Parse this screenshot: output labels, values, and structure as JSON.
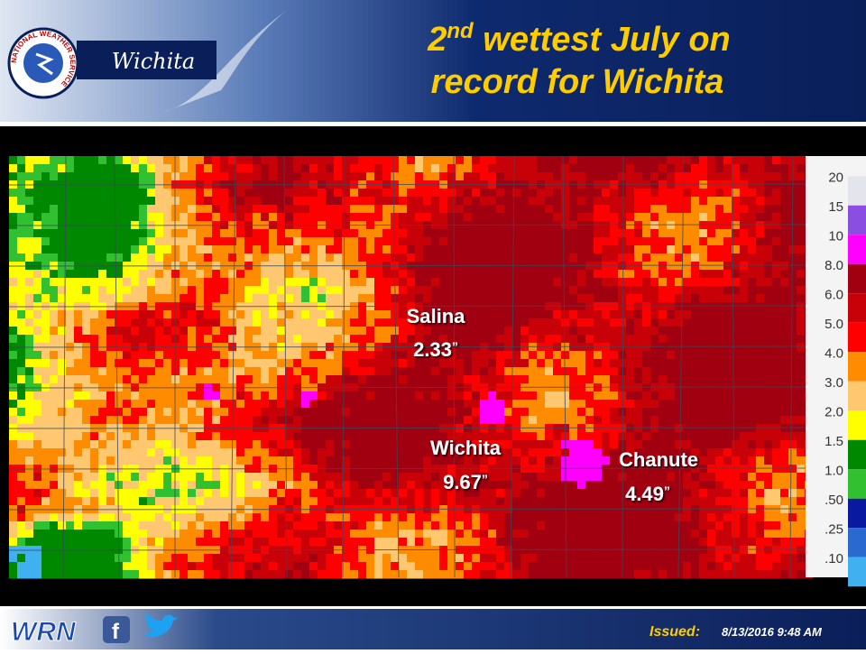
{
  "header": {
    "logo_text": "NATIONAL WEATHER SERVICE",
    "office": "Wichita",
    "title": {
      "ordinal": "2",
      "suffix": "nd",
      "line1": " wettest July on",
      "line2": "record for Wichita"
    }
  },
  "map": {
    "labels": [
      {
        "name": "Salina",
        "amount": "2.33",
        "unit": "”"
      },
      {
        "name": "Wichita",
        "amount": "9.67",
        "unit": "”"
      },
      {
        "name": "Chanute",
        "amount": "4.49",
        "unit": "”"
      }
    ]
  },
  "legend": {
    "items": [
      {
        "label": "20",
        "color": "#e4e4ec"
      },
      {
        "label": "15",
        "color": "#8a4fe0"
      },
      {
        "label": "10",
        "color": "#ff00ff"
      },
      {
        "label": "8.0",
        "color": "#a00010"
      },
      {
        "label": "6.0",
        "color": "#c80008"
      },
      {
        "label": "5.0",
        "color": "#ff0000"
      },
      {
        "label": "4.0",
        "color": "#ff8c00"
      },
      {
        "label": "3.0",
        "color": "#ffc870"
      },
      {
        "label": "2.0",
        "color": "#ffff00"
      },
      {
        "label": "1.5",
        "color": "#008800"
      },
      {
        "label": "1.0",
        "color": "#30c030"
      },
      {
        "label": ".50",
        "color": "#0a1aa0"
      },
      {
        "label": ".25",
        "color": "#2a6ad0"
      },
      {
        "label": ".10",
        "color": "#40b0f0"
      }
    ]
  },
  "footer": {
    "brand": "WRN",
    "issued_label": "Issued:",
    "issued_time": "8/13/2016 9:48 AM"
  }
}
